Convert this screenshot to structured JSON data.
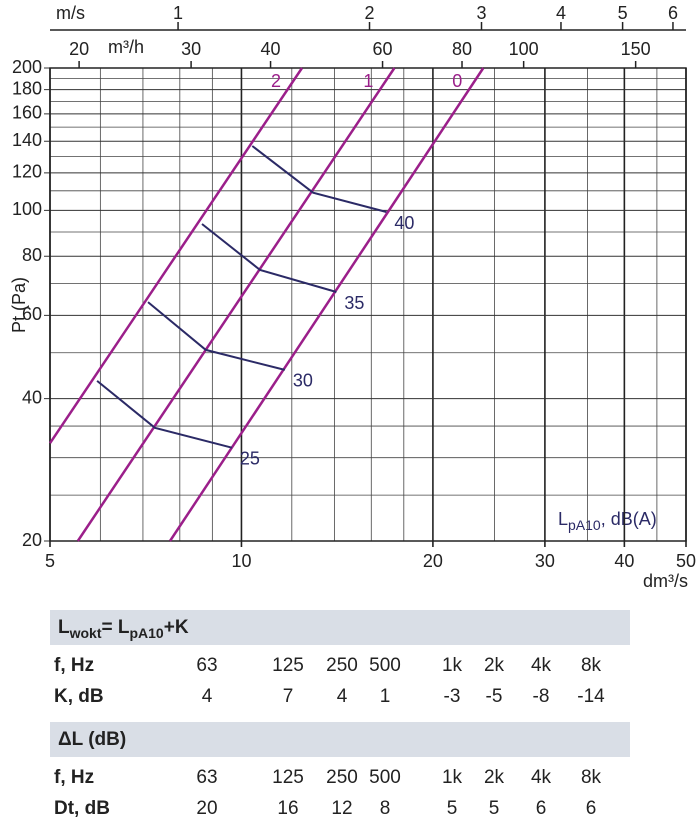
{
  "chart_data": {
    "type": "line",
    "xscale": "log",
    "yscale": "log",
    "grid": true,
    "xlim": [
      5,
      50
    ],
    "ylim": [
      20,
      200
    ],
    "xticks": [
      5,
      10,
      20,
      30,
      40,
      50
    ],
    "xminor": [
      6,
      7,
      8,
      9,
      12,
      14,
      16,
      18,
      25,
      35,
      45
    ],
    "yticks": [
      20,
      40,
      60,
      80,
      100,
      120,
      140,
      160,
      180,
      200
    ],
    "yminor": [
      25,
      30,
      35,
      50,
      70,
      90,
      110,
      130,
      150,
      170,
      190
    ],
    "xlabel": "dm³/s",
    "ylabel": "Pt (Pa)",
    "top_axes": [
      {
        "label": "m/s",
        "lim": [
          0.629,
          6.29
        ],
        "ticks": [
          1,
          2,
          3,
          4,
          5,
          6
        ]
      },
      {
        "label": "m³/h",
        "lim": [
          18,
          180
        ],
        "ticks": [
          20,
          30,
          40,
          60,
          80,
          100,
          150
        ]
      }
    ],
    "annotation": [
      "L",
      "pA10",
      ", dB(A)"
    ],
    "series": [
      {
        "name": "2",
        "color": "#9b1f8a",
        "kind": "limit",
        "x": [
          5,
          12.45
        ],
        "values": [
          32.2,
          200
        ]
      },
      {
        "name": "1",
        "color": "#9b1f8a",
        "kind": "limit",
        "x": [
          5.53,
          17.4
        ],
        "values": [
          20,
          200
        ]
      },
      {
        "name": "0",
        "color": "#9b1f8a",
        "kind": "limit",
        "x": [
          7.72,
          24.0
        ],
        "values": [
          20,
          200
        ]
      },
      {
        "name": "25",
        "color": "#2b2a66",
        "kind": "sound",
        "x": [
          5.93,
          7.31,
          9.66
        ],
        "values": [
          43.6,
          34.7,
          31.5
        ]
      },
      {
        "name": "30",
        "color": "#2b2a66",
        "kind": "sound",
        "x": [
          7.13,
          8.79,
          11.7
        ],
        "values": [
          64.0,
          50.7,
          46.0
        ]
      },
      {
        "name": "35",
        "color": "#2b2a66",
        "kind": "sound",
        "x": [
          8.67,
          10.7,
          14.1
        ],
        "values": [
          93.6,
          74.8,
          67.2
        ]
      },
      {
        "name": "40",
        "color": "#2b2a66",
        "kind": "sound",
        "x": [
          10.4,
          12.96,
          16.9
        ],
        "values": [
          136.8,
          109,
          99.2
        ]
      }
    ]
  },
  "table": {
    "sections": [
      {
        "title": [
          "L",
          "wokt",
          "= L",
          "pA10",
          "+K"
        ],
        "rows": [
          [
            "f, Hz",
            63,
            125,
            250,
            500,
            "1k",
            "2k",
            "4k",
            "8k"
          ],
          [
            "K, dB",
            4,
            7,
            4,
            1,
            -3,
            -5,
            -8,
            -14
          ]
        ]
      },
      {
        "title": [
          "ΔL (dB)"
        ],
        "rows": [
          [
            "f, Hz",
            63,
            125,
            250,
            500,
            "1k",
            "2k",
            "4k",
            "8k"
          ],
          [
            "Dt, dB",
            20,
            16,
            12,
            8,
            5,
            5,
            6,
            6
          ]
        ]
      }
    ]
  }
}
